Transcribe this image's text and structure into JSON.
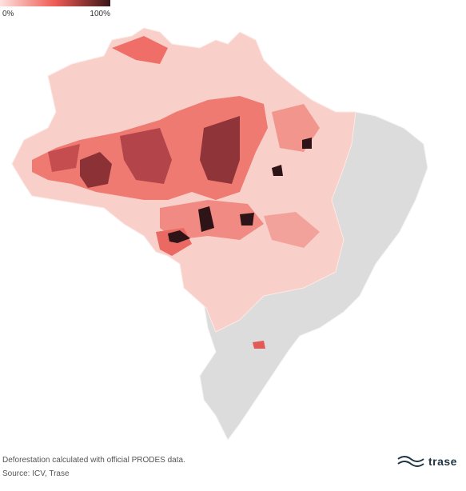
{
  "legend": {
    "min_label": "0%",
    "max_label": "100%"
  },
  "footer": {
    "note": "Deforestation calculated with official PRODES data.",
    "source": "Source: ICV, Trase"
  },
  "logo": {
    "text": "trase"
  }
}
